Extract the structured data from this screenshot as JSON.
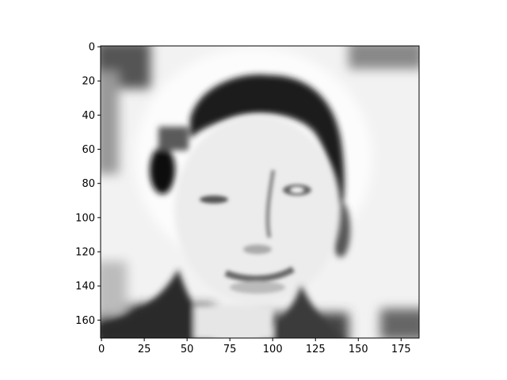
{
  "chart_data": {
    "type": "heatmap",
    "title": "",
    "xlabel": "",
    "ylabel": "",
    "colormap": "gray",
    "image_width": 186,
    "image_height": 171,
    "xlim": [
      -0.5,
      185.5
    ],
    "ylim": [
      170.5,
      -0.5
    ],
    "y_axis_inverted": true,
    "grid": false,
    "x_ticks": [
      0,
      25,
      50,
      75,
      100,
      125,
      150,
      175
    ],
    "y_ticks": [
      0,
      20,
      40,
      60,
      80,
      100,
      120,
      140,
      160
    ],
    "x_tick_labels": [
      "0",
      "25",
      "50",
      "75",
      "100",
      "125",
      "150",
      "175"
    ],
    "y_tick_labels": [
      "0",
      "20",
      "40",
      "60",
      "80",
      "100",
      "120",
      "140",
      "160"
    ],
    "image_description_regions": [
      {
        "name": "background",
        "value": 0.95
      },
      {
        "name": "hair",
        "value": 0.08
      },
      {
        "name": "face",
        "value": 0.92
      },
      {
        "name": "eyes",
        "value": 0.35
      },
      {
        "name": "mouth",
        "value": 0.45
      },
      {
        "name": "dark-corners",
        "value": 0.25
      }
    ]
  }
}
